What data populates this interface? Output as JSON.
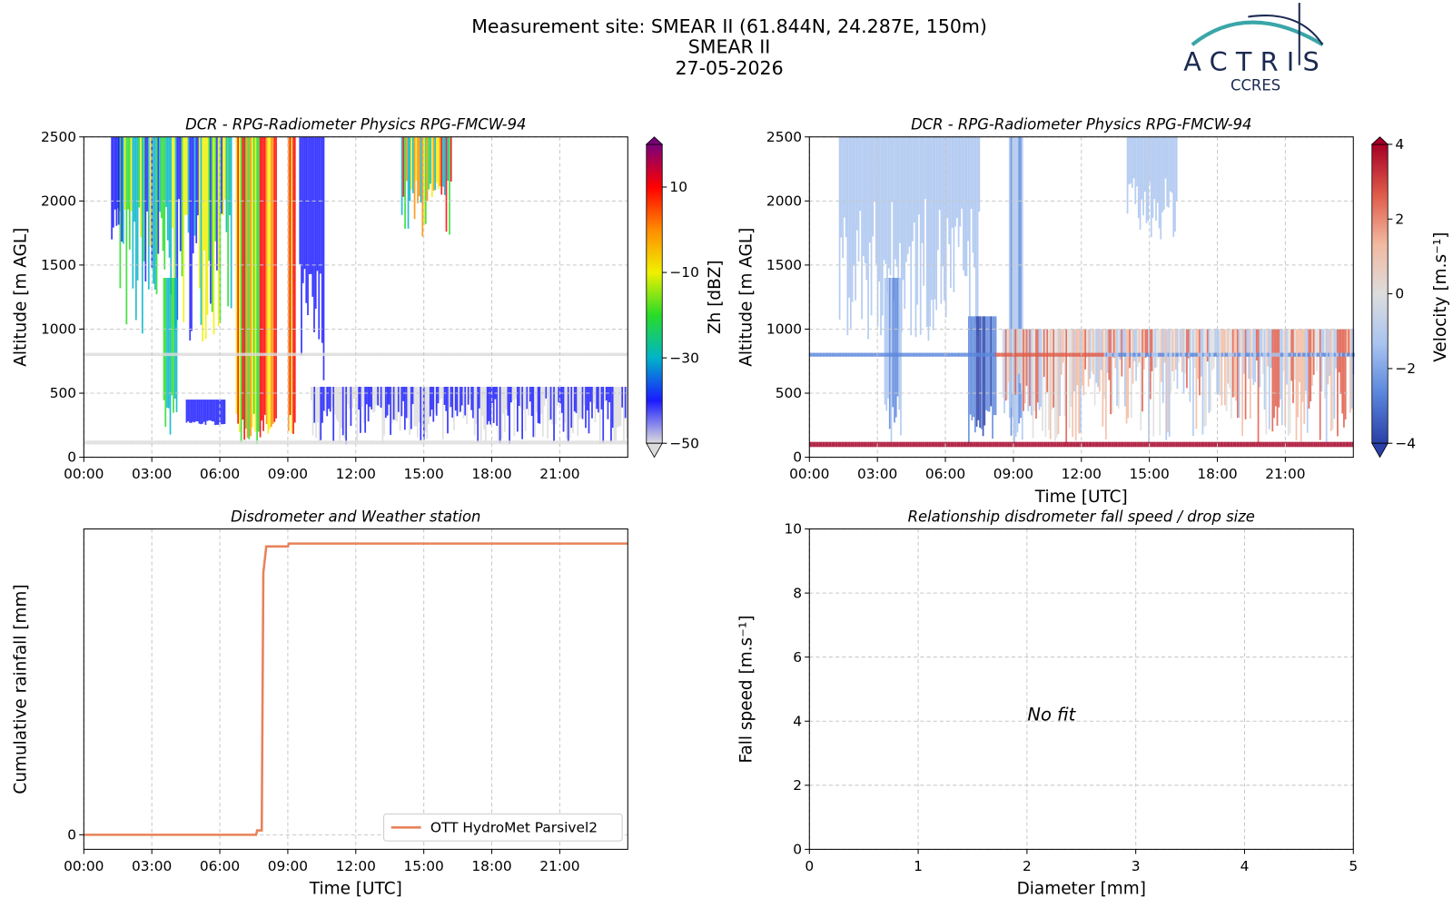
{
  "header": {
    "title": [
      "Measurement site: SMEAR II (61.844N, 24.287E, 150m)",
      "SMEAR II",
      "27-05-2026"
    ],
    "logo": "ACTRIS",
    "logo_sub": "CCRES"
  },
  "chart_data": [
    {
      "type": "heatmap",
      "title": "DCR - RPG-Radiometer Physics RPG-FMCW-94",
      "ylabel": "Altitude [m AGL]",
      "xlim": [
        0,
        24
      ],
      "xticks": [
        {
          "value": 0,
          "label": "00:00"
        },
        {
          "value": 3,
          "label": "03:00"
        },
        {
          "value": 6,
          "label": "06:00"
        },
        {
          "value": 9,
          "label": "09:00"
        },
        {
          "value": 12,
          "label": "12:00"
        },
        {
          "value": 15,
          "label": "15:00"
        },
        {
          "value": 18,
          "label": "18:00"
        },
        {
          "value": 21,
          "label": "21:00"
        }
      ],
      "ylim": [
        0,
        2500
      ],
      "yticks": [
        0,
        500,
        1000,
        1500,
        2000,
        2500
      ],
      "grid": true,
      "clabel": "Zh [dBZ]",
      "clim": [
        -50,
        20
      ],
      "cticks": [
        {
          "value": -50,
          "label": "−50"
        },
        {
          "value": -30,
          "label": "−30"
        },
        {
          "value": -10,
          "label": "−10"
        },
        10
      ],
      "colormap": [
        "#dcdcdc",
        "#1a1aff",
        "#00b4c8",
        "#28dc28",
        "#f0f000",
        "#ff8c00",
        "#ff0000",
        "#7a007a"
      ]
    },
    {
      "type": "heatmap",
      "title": "DCR - RPG-Radiometer Physics RPG-FMCW-94",
      "ylabel": "Altitude [m AGL]",
      "xlabel": "Time [UTC]",
      "xlim": [
        0,
        24
      ],
      "xticks": [
        {
          "value": 0,
          "label": "00:00"
        },
        {
          "value": 3,
          "label": "03:00"
        },
        {
          "value": 6,
          "label": "06:00"
        },
        {
          "value": 9,
          "label": "09:00"
        },
        {
          "value": 12,
          "label": "12:00"
        },
        {
          "value": 15,
          "label": "15:00"
        },
        {
          "value": 18,
          "label": "18:00"
        },
        {
          "value": 21,
          "label": "21:00"
        }
      ],
      "ylim": [
        0,
        2500
      ],
      "yticks": [
        0,
        500,
        1000,
        1500,
        2000,
        2500
      ],
      "grid": true,
      "clabel": "Velocity [m.s⁻¹]",
      "clim": [
        -4,
        4
      ],
      "cticks": [
        {
          "value": -4,
          "label": "−4"
        },
        {
          "value": -2,
          "label": "−2"
        },
        0,
        2,
        4
      ],
      "colormap": [
        "#2a3fa8",
        "#5a86dc",
        "#a9c4f0",
        "#dddddd",
        "#f2b9a0",
        "#df5a48",
        "#a50026"
      ]
    },
    {
      "type": "line",
      "title": "Disdrometer and Weather station",
      "ylabel": "Cumulative rainfall [mm]",
      "xlabel": "Time [UTC]",
      "xlim": [
        0,
        24
      ],
      "xticks": [
        {
          "value": 0,
          "label": "00:00"
        },
        {
          "value": 3,
          "label": "03:00"
        },
        {
          "value": 6,
          "label": "06:00"
        },
        {
          "value": 9,
          "label": "09:00"
        },
        {
          "value": 12,
          "label": "12:00"
        },
        {
          "value": 15,
          "label": "15:00"
        },
        {
          "value": 18,
          "label": "18:00"
        },
        {
          "value": 21,
          "label": "21:00"
        }
      ],
      "ylim": [
        -1,
        21
      ],
      "yticks": [
        0
      ],
      "grid": true,
      "legend": "lower right",
      "x": [
        0,
        7.6,
        7.65,
        7.85,
        7.92,
        8.05,
        9.0,
        9.05,
        24
      ],
      "series": [
        {
          "name": "OTT HydroMet Parsivel2",
          "color": "#e8825a",
          "values": [
            0,
            0,
            0.3,
            0.3,
            18,
            19.8,
            19.8,
            20,
            20
          ]
        }
      ]
    },
    {
      "type": "scatter",
      "title": "Relationship disdrometer fall speed / drop size",
      "ylabel": "Fall speed [m.s⁻¹]",
      "xlabel": "Diameter [mm]",
      "xlim": [
        0,
        5
      ],
      "xticks": [
        0,
        1,
        2,
        3,
        4,
        5
      ],
      "ylim": [
        0,
        10
      ],
      "yticks": [
        0,
        2,
        4,
        6,
        8,
        10
      ],
      "grid": true,
      "annotation": "No fit"
    }
  ]
}
